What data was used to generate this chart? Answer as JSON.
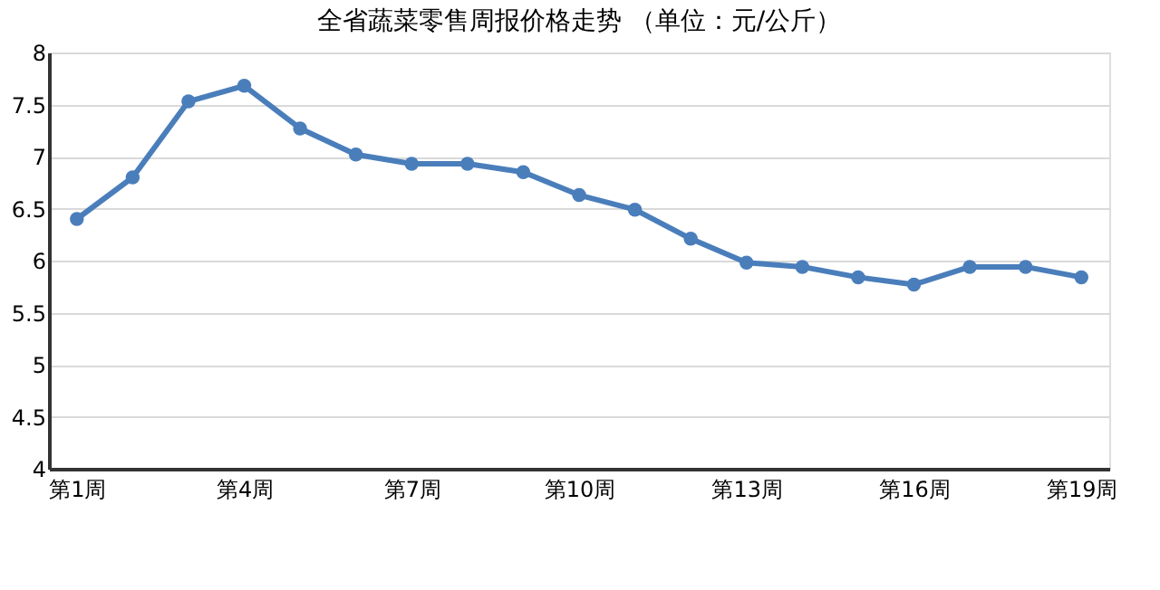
{
  "chart_data": {
    "type": "line",
    "title": "全省蔬菜零售周报价格走势    （单位：元/公斤）",
    "categories": [
      "第1周",
      null,
      null,
      "第4周",
      null,
      null,
      "第7周",
      null,
      null,
      "第10周",
      null,
      null,
      "第13周",
      null,
      null,
      "第16周",
      null,
      null,
      "第19周"
    ],
    "series": [
      {
        "color": "#4a7ebb",
        "values": [
          6.4,
          6.8,
          7.53,
          7.68,
          7.27,
          7.02,
          6.93,
          6.93,
          6.85,
          6.63,
          6.49,
          6.21,
          5.98,
          5.94,
          5.84,
          5.77,
          5.94,
          5.94,
          5.84
        ]
      }
    ],
    "ylim": [
      4,
      8
    ],
    "yticks": [
      4,
      {
        "value": 4.5,
        "label": "4.5"
      },
      5,
      {
        "value": 5.5,
        "label": "5.5"
      },
      6,
      {
        "value": 6.5,
        "label": "6.5"
      },
      7,
      {
        "value": 7.5,
        "label": "7.5"
      },
      8
    ],
    "grid": "y",
    "marker": "circle",
    "line_style": "solid"
  }
}
